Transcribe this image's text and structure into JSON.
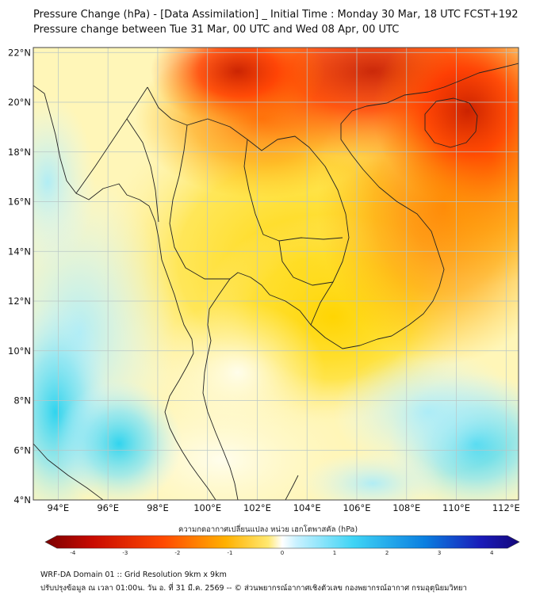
{
  "header": {
    "title_line1": "Pressure Change (hPa) - [Data Assimilation] _ Initial Time : Monday 30 Mar, 18 UTC FCST+192",
    "title_line2": "Pressure change between Tue 31 Mar, 00 UTC and Wed 08 Apr, 00 UTC"
  },
  "map": {
    "lat_labels": [
      "22°N",
      "20°N",
      "18°N",
      "16°N",
      "14°N",
      "12°N",
      "10°N",
      "8°N",
      "6°N",
      "4°N"
    ],
    "lat_values": [
      22,
      20,
      18,
      16,
      14,
      12,
      10,
      8,
      6,
      4
    ],
    "lon_labels": [
      "94°E",
      "96°E",
      "98°E",
      "100°E",
      "102°E",
      "104°E",
      "106°E",
      "108°E",
      "110°E",
      "112°E"
    ],
    "lon_values": [
      94,
      96,
      98,
      100,
      102,
      104,
      106,
      108,
      110,
      112
    ],
    "lat_range": [
      4,
      22.2
    ],
    "lon_range": [
      93,
      112.5
    ],
    "gridlines": true,
    "colors": {
      "negative_max": "#c81e00",
      "negative_mid": "#ff7a00",
      "negative_low": "#ffd400",
      "near_zero": "#fffbd0",
      "positive_low": "#cdf3ff",
      "positive_mid": "#26d2f0",
      "positive_max": "#14077a",
      "coastline": "#222222",
      "gridline": "#b9c6c6"
    }
  },
  "colorbar": {
    "title": "ความกดอากาศเปลี่ยนแปลง หน่วย เฮกโตพาสคัล (hPa)",
    "ticks": [
      "-4",
      "-3",
      "-2",
      "-1",
      "0",
      "1",
      "2",
      "3",
      "4"
    ],
    "tick_values": [
      -4,
      -3,
      -2,
      -1,
      0,
      1,
      2,
      3,
      4
    ],
    "range": [
      -4.3,
      4.3
    ]
  },
  "footer": {
    "line1": "WRF-DA Domain 01 :: Grid Resolution 9km x 9km",
    "line2": "ปรับปรุงข้อมูล ณ เวลา 01:00น. วัน อ. ที่ 31 มี.ค. 2569 -- © ส่วนพยากรณ์อากาศเชิงตัวเลข กองพยากรณ์อากาศ กรมอุตุนิยมวิทยา"
  }
}
